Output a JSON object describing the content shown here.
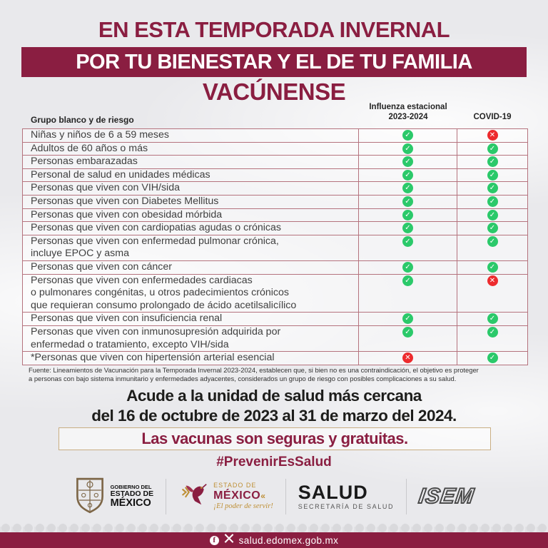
{
  "header": {
    "line1": "EN ESTA TEMPORADA INVERNAL",
    "line2": "POR TU BIENESTAR Y EL DE TU FAMILIA",
    "line3": "VACÚNENSE"
  },
  "table": {
    "col_group": "Grupo blanco y de riesgo",
    "col_influenza_l1": "Influenza estacional",
    "col_influenza_l2": "2023-2024",
    "col_covid": "COVID-19",
    "rows": [
      {
        "label": "Niñas y niños de 6 a 59 meses",
        "influenza": "check",
        "covid": "cross"
      },
      {
        "label": "Adultos de 60 años o más",
        "influenza": "check",
        "covid": "check"
      },
      {
        "label": "Personas embarazadas",
        "influenza": "check",
        "covid": "check"
      },
      {
        "label": "Personal de salud en unidades médicas",
        "influenza": "check",
        "covid": "check"
      },
      {
        "label": "Personas que viven con VIH/sida",
        "influenza": "check",
        "covid": "check"
      },
      {
        "label": "Personas que viven con Diabetes Mellitus",
        "influenza": "check",
        "covid": "check"
      },
      {
        "label": "Personas que viven con obesidad mórbida",
        "influenza": "check",
        "covid": "check"
      },
      {
        "label": "Personas que viven con cardiopatias agudas o crónicas",
        "influenza": "check",
        "covid": "check"
      },
      {
        "label": "Personas que viven con enfermedad pulmonar crónica,\nincluye EPOC y asma",
        "influenza": "check",
        "covid": "check"
      },
      {
        "label": "Personas que viven con cáncer",
        "influenza": "check",
        "covid": "check"
      },
      {
        "label": "Personas que viven con enfermedades cardiacas\no pulmonares congénitas, u otros padecimientos crónicos\nque requieran consumo prolongado de ácido acetilsalicílico",
        "influenza": "check",
        "covid": "cross"
      },
      {
        "label": "Personas que viven con insuficiencia renal",
        "influenza": "check",
        "covid": "check"
      },
      {
        "label": "Personas que viven con inmunosupresión adquirida por\nenfermedad o tratamiento, excepto VIH/sida",
        "influenza": "check",
        "covid": "check"
      },
      {
        "label": "*Personas que viven con hipertensión arterial esencial",
        "influenza": "cross",
        "covid": "check"
      }
    ]
  },
  "footnote": "Fuente: Lineamientos de Vacunación para la Temporada Invernal 2023-2024, establecen que, si bien no es una contraindicación, el objetivo es proteger\na personas con bajo sistema inmunitario y enfermedades adyacentes, considerados un grupo de riesgo con posibles complicaciones a su salud.",
  "cta": {
    "line1": "Acude a la unidad de salud más cercana",
    "line2": "del 16 de octubre de 2023 al 31 de marzo del 2024."
  },
  "banner_box": "Las vacunas son seguras y gratuitas.",
  "hashtag": "#PrevenirEsSalud",
  "footer": {
    "logo1": {
      "l1": "GOBIERNO DEL",
      "l2": "ESTADO DE",
      "l3": "MÉXICO"
    },
    "logo2": {
      "l1": "ESTADO DE",
      "l2": "MÉXICO",
      "chevron": "«",
      "l3": "¡El poder de servir!"
    },
    "logo3": {
      "l1": "SALUD",
      "l2": "SECRETARÍA DE SALUD"
    },
    "logo4": {
      "l1": "ISEM"
    }
  },
  "bottombar": {
    "url": "salud.edomex.gob.mx"
  },
  "icons": {
    "check": "✓",
    "cross": "✕",
    "facebook": "f"
  },
  "colors": {
    "maroon": "#8A1E41",
    "green": "#2BC96A",
    "red": "#ED2B2E",
    "gold": "#BE8F35",
    "table_line": "#B5737E",
    "box_border": "#C9AE83"
  }
}
